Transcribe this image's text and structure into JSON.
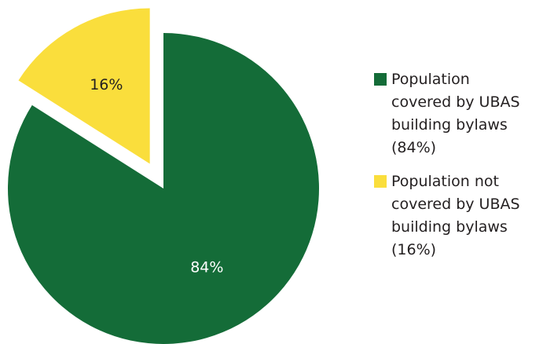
{
  "chart_data": {
    "type": "pie",
    "title": "",
    "slices": [
      {
        "label": "84%",
        "value": 84,
        "color": "#146c38",
        "label_color": "#ffffff"
      },
      {
        "label": "16%",
        "value": 16,
        "color": "#fade3c",
        "label_color": "#231f20",
        "exploded": true
      }
    ],
    "legend": {
      "placement": "right",
      "entries": [
        {
          "text": "Population\ncovered by UBAS\nbuilding bylaws\n(84%)",
          "color": "#146c38"
        },
        {
          "text": "Population not\ncovered by UBAS\nbuilding bylaws\n(16%)",
          "color": "#fade3c"
        }
      ]
    }
  }
}
